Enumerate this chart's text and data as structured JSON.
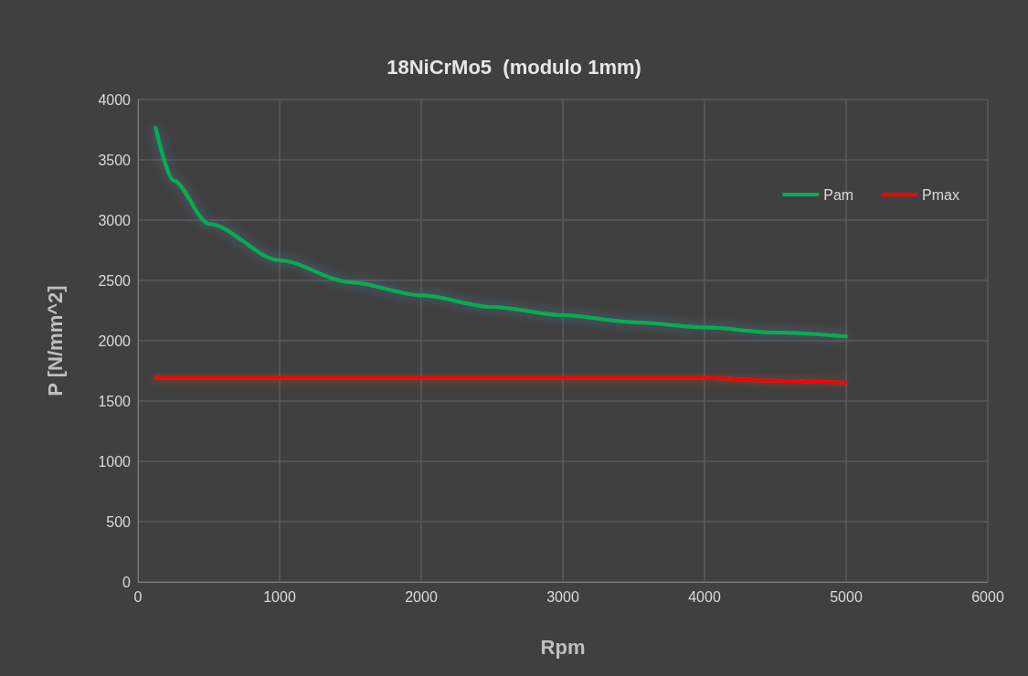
{
  "chart_data": {
    "type": "line",
    "title": "18NiCrMo5  (modulo 1mm)",
    "xlabel": "Rpm",
    "ylabel": "P [N/mm^2]",
    "x": [
      125,
      250,
      500,
      1000,
      1500,
      2000,
      2500,
      3000,
      3500,
      4000,
      4500,
      5000
    ],
    "series": [
      {
        "name": "Pam",
        "color": "#00b050",
        "values": [
          3765,
          3330,
          2970,
          2667,
          2485,
          2376,
          2280,
          2212,
          2154,
          2111,
          2068,
          2036
        ]
      },
      {
        "name": "Pmax",
        "color": "#ff0000",
        "values": [
          1692,
          1692,
          1692,
          1692,
          1692,
          1692,
          1692,
          1692,
          1692,
          1692,
          1669,
          1652
        ]
      }
    ],
    "xlim": [
      0,
      6000
    ],
    "xticks": [
      0,
      1000,
      2000,
      3000,
      4000,
      5000,
      6000
    ],
    "ylim": [
      0,
      4000
    ],
    "yticks": [
      0,
      500,
      1000,
      1500,
      2000,
      2500,
      3000,
      3500,
      4000
    ],
    "grid": true,
    "legend": "top right",
    "marker": "none",
    "line_style": "solid"
  }
}
